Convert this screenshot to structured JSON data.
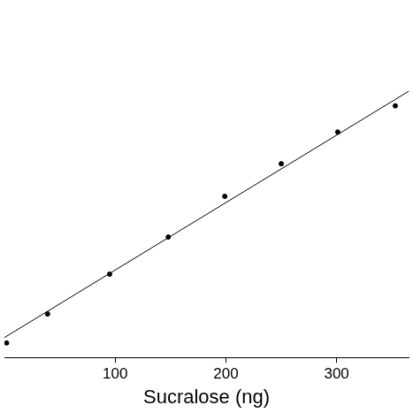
{
  "chart_data": {
    "type": "scatter",
    "x_label": "Sucralose (ng)",
    "xlim": [
      0,
      365
    ],
    "xticks": [
      100,
      200,
      300
    ],
    "ylim": [
      0,
      390
    ],
    "tick_labels": "x",
    "grid": false,
    "series": [
      {
        "type": "scatter",
        "color": "#000000",
        "marker": "circle",
        "x": [
          2,
          39,
          95,
          148,
          199,
          250,
          301,
          353
        ],
        "values": [
          16,
          48,
          92,
          133,
          178,
          214,
          249,
          278
        ]
      },
      {
        "type": "line",
        "color": "#000000",
        "line_style": "solid",
        "x": [
          0,
          365
        ],
        "values": [
          22,
          294
        ]
      }
    ]
  }
}
